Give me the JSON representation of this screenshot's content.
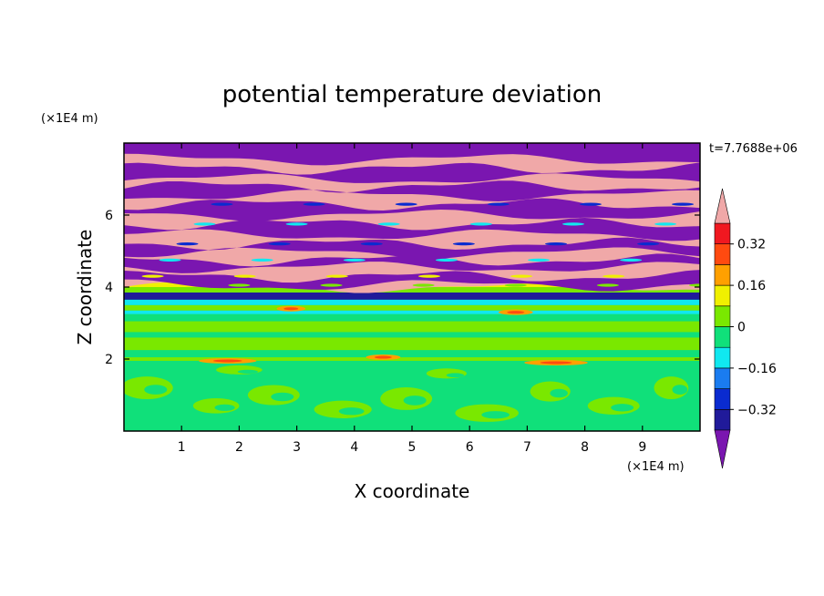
{
  "chart_data": {
    "type": "heatmap",
    "title": "potential temperature deviation",
    "xlabel": "X coordinate",
    "ylabel": "Z coordinate",
    "x_unit": "(×1E4 m)",
    "z_unit": "(×1E4 m)",
    "time_label": "t=7.7688e+06",
    "xlim": [
      0,
      10
    ],
    "zlim": [
      0,
      8
    ],
    "x_ticks": [
      "1",
      "2",
      "3",
      "4",
      "5",
      "6",
      "7",
      "8",
      "9"
    ],
    "x_tick_values": [
      1,
      2,
      3,
      4,
      5,
      6,
      7,
      8,
      9
    ],
    "z_ticks": [
      "2",
      "4",
      "6"
    ],
    "z_tick_values": [
      2,
      4,
      6
    ],
    "colorbar": {
      "levels": [
        -0.4,
        -0.32,
        -0.24,
        -0.16,
        -0.08,
        0,
        0.08,
        0.16,
        0.24,
        0.32,
        0.4
      ],
      "tick_labels": [
        "0.32",
        "0.16",
        "0",
        "−0.16",
        "−0.32"
      ],
      "tick_values": [
        0.32,
        0.16,
        0,
        -0.16,
        -0.32
      ],
      "colors": [
        "#7a16b0",
        "#201a9a",
        "#0a2bd0",
        "#1a7cf0",
        "#10e8f0",
        "#10e07a",
        "#7ae800",
        "#f0f000",
        "#ffa000",
        "#ff4a10",
        "#f01820",
        "#f0a8a8"
      ]
    },
    "layers_description_colors": {
      "upper_band_pink": "#f0a8a8",
      "upper_band_purple": "#7a16b0",
      "lower_green": "#10e07a",
      "lower_lime": "#7ae800"
    }
  }
}
